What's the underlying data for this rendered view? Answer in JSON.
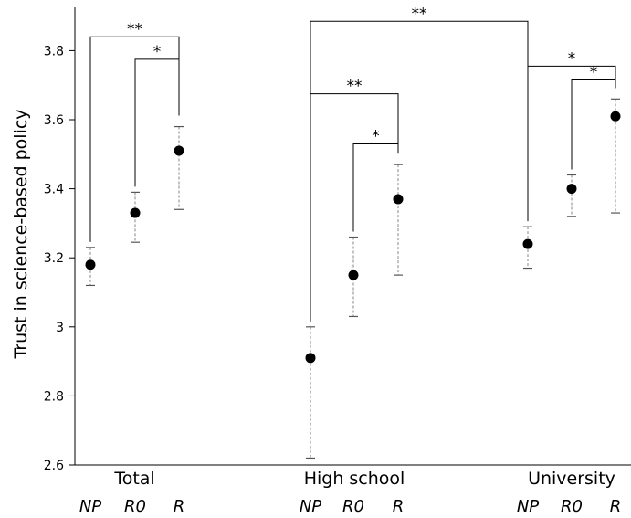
{
  "chart_data": {
    "type": "scatter",
    "ylabel": "Trust in science-based policy",
    "xlabel": "",
    "ylim": [
      2.6,
      3.93
    ],
    "yticks": [
      {
        "value": 2.6,
        "label": "2.6"
      },
      {
        "value": 2.8,
        "label": "2.8"
      },
      {
        "value": 3.0,
        "label": "3"
      },
      {
        "value": 3.2,
        "label": "3.2"
      },
      {
        "value": 3.4,
        "label": "3.4"
      },
      {
        "value": 3.6,
        "label": "3.6"
      },
      {
        "value": 3.8,
        "label": "3.8"
      }
    ],
    "marker_color": "#000000",
    "errorbar_color": "#9a9a9a",
    "groups": [
      {
        "label": "Total",
        "points": [
          {
            "category": "NP",
            "mean": 3.18,
            "lower": 3.12,
            "upper": 3.23
          },
          {
            "category": "R0",
            "mean": 3.33,
            "lower": 3.245,
            "upper": 3.39
          },
          {
            "category": "R",
            "mean": 3.51,
            "lower": 3.34,
            "upper": 3.58
          }
        ]
      },
      {
        "label": "High school",
        "points": [
          {
            "category": "NP",
            "mean": 2.91,
            "lower": 2.62,
            "upper": 3.0
          },
          {
            "category": "R0",
            "mean": 3.15,
            "lower": 3.03,
            "upper": 3.26
          },
          {
            "category": "R",
            "mean": 3.37,
            "lower": 3.15,
            "upper": 3.47
          }
        ]
      },
      {
        "label": "University",
        "points": [
          {
            "category": "NP",
            "mean": 3.24,
            "lower": 3.17,
            "upper": 3.29
          },
          {
            "category": "R0",
            "mean": 3.4,
            "lower": 3.32,
            "upper": 3.44
          },
          {
            "category": "R",
            "mean": 3.61,
            "lower": 3.33,
            "upper": 3.66
          }
        ]
      }
    ],
    "significance": [
      {
        "from": [
          0,
          0
        ],
        "to": [
          0,
          2
        ],
        "level": 3.84,
        "label": "**"
      },
      {
        "from": [
          0,
          1
        ],
        "to": [
          0,
          2
        ],
        "level": 3.775,
        "label": "*"
      },
      {
        "from": [
          1,
          0
        ],
        "to": [
          2,
          0
        ],
        "level": 3.885,
        "label": "**"
      },
      {
        "from": [
          1,
          0
        ],
        "to": [
          1,
          2
        ],
        "level": 3.675,
        "label": "**"
      },
      {
        "from": [
          1,
          1
        ],
        "to": [
          1,
          2
        ],
        "level": 3.53,
        "label": "*"
      },
      {
        "from": [
          2,
          0
        ],
        "to": [
          2,
          2
        ],
        "level": 3.755,
        "label": "*"
      },
      {
        "from": [
          2,
          1
        ],
        "to": [
          2,
          2
        ],
        "level": 3.715,
        "label": "*"
      }
    ]
  }
}
